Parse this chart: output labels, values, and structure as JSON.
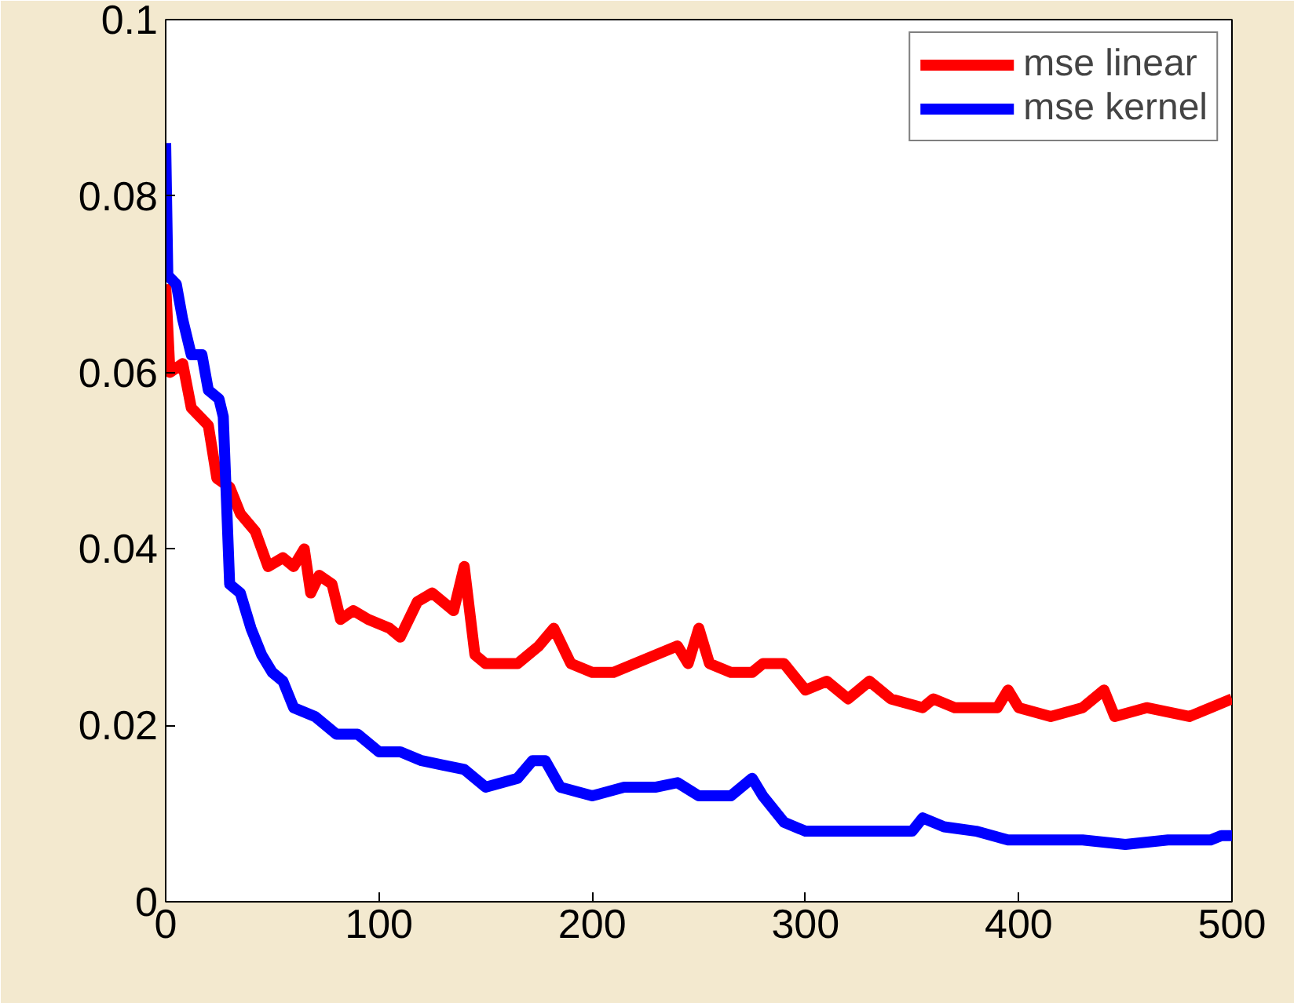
{
  "chart_data": {
    "type": "line",
    "xlim": [
      0,
      500
    ],
    "ylim": [
      0,
      0.1
    ],
    "xticks": [
      0,
      100,
      200,
      300,
      400,
      500
    ],
    "yticks": [
      0,
      0.02,
      0.04,
      0.06,
      0.08,
      0.1
    ],
    "grid": false,
    "legend": "top right",
    "marker": "none",
    "line_style": "solid",
    "series": [
      {
        "name": "mse linear",
        "color": "#ff0000",
        "x": [
          0,
          2,
          8,
          12,
          20,
          24,
          30,
          35,
          42,
          48,
          55,
          60,
          65,
          68,
          72,
          78,
          82,
          88,
          95,
          105,
          110,
          118,
          125,
          130,
          135,
          140,
          145,
          150,
          165,
          175,
          182,
          190,
          200,
          210,
          220,
          230,
          240,
          245,
          250,
          255,
          265,
          275,
          280,
          290,
          300,
          310,
          320,
          330,
          340,
          355,
          360,
          370,
          380,
          390,
          395,
          400,
          415,
          430,
          440,
          445,
          460,
          480,
          490,
          500
        ],
        "values": [
          0.07,
          0.06,
          0.061,
          0.056,
          0.054,
          0.048,
          0.047,
          0.044,
          0.042,
          0.038,
          0.039,
          0.038,
          0.04,
          0.035,
          0.037,
          0.036,
          0.032,
          0.033,
          0.032,
          0.031,
          0.03,
          0.034,
          0.035,
          0.034,
          0.033,
          0.038,
          0.028,
          0.027,
          0.027,
          0.029,
          0.031,
          0.027,
          0.026,
          0.026,
          0.027,
          0.028,
          0.029,
          0.027,
          0.031,
          0.027,
          0.026,
          0.026,
          0.027,
          0.027,
          0.024,
          0.025,
          0.023,
          0.025,
          0.023,
          0.022,
          0.023,
          0.022,
          0.022,
          0.022,
          0.024,
          0.022,
          0.021,
          0.022,
          0.024,
          0.021,
          0.022,
          0.021,
          0.022,
          0.023
        ]
      },
      {
        "name": "mse kernel",
        "color": "#0000ff",
        "x": [
          0,
          1,
          5,
          8,
          12,
          17,
          20,
          25,
          27,
          30,
          35,
          40,
          45,
          50,
          55,
          60,
          70,
          80,
          90,
          100,
          110,
          120,
          130,
          140,
          145,
          150,
          165,
          172,
          178,
          185,
          200,
          215,
          230,
          240,
          250,
          265,
          275,
          280,
          290,
          300,
          320,
          340,
          350,
          355,
          365,
          380,
          395,
          410,
          430,
          450,
          470,
          490,
          495,
          500
        ],
        "values": [
          0.086,
          0.071,
          0.07,
          0.066,
          0.062,
          0.062,
          0.058,
          0.057,
          0.055,
          0.036,
          0.035,
          0.031,
          0.028,
          0.026,
          0.025,
          0.022,
          0.021,
          0.019,
          0.019,
          0.017,
          0.017,
          0.016,
          0.0155,
          0.015,
          0.014,
          0.013,
          0.014,
          0.016,
          0.016,
          0.013,
          0.012,
          0.013,
          0.013,
          0.0135,
          0.012,
          0.012,
          0.014,
          0.012,
          0.009,
          0.008,
          0.008,
          0.008,
          0.008,
          0.0095,
          0.0085,
          0.008,
          0.007,
          0.007,
          0.007,
          0.0065,
          0.007,
          0.007,
          0.0075,
          0.0075
        ]
      }
    ]
  }
}
